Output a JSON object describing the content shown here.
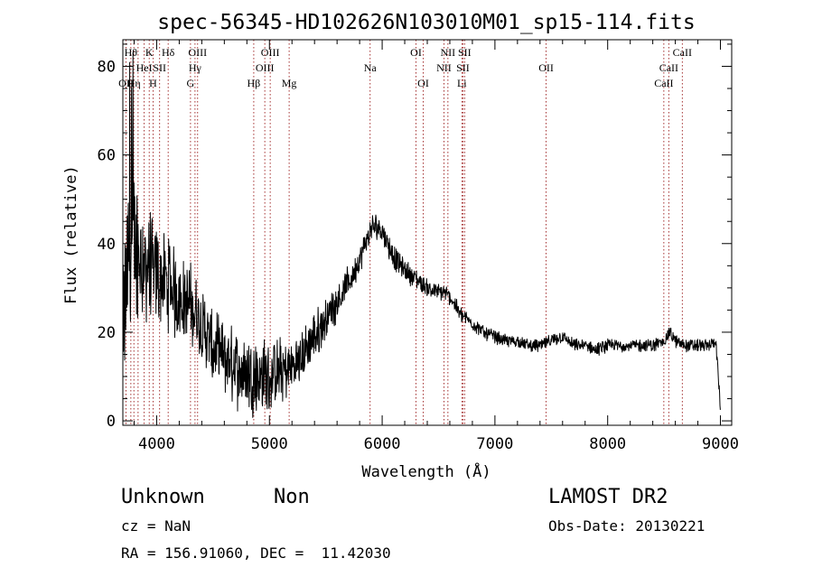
{
  "chart_data": {
    "type": "line",
    "title": "spec-56345-HD102626N103010M01_sp15-114.fits",
    "xlabel": "Wavelength (Å)",
    "ylabel": "Flux (relative)",
    "xlim": [
      3700,
      9100
    ],
    "ylim": [
      -1,
      86
    ],
    "xticks": [
      4000,
      5000,
      6000,
      7000,
      8000,
      9000
    ],
    "yticks": [
      0,
      20,
      40,
      60,
      80
    ],
    "grid": false,
    "series": [
      {
        "color": "#000000",
        "spectrum_envelope": {
          "x": [
            3700,
            3750,
            3800,
            3850,
            3900,
            3950,
            4000,
            4100,
            4200,
            4300,
            4400,
            4500,
            4600,
            4700,
            4800,
            4900,
            5000,
            5100,
            5200,
            5300,
            5400,
            5500,
            5600,
            5700,
            5800,
            5850,
            5900,
            5950,
            6000,
            6050,
            6100,
            6200,
            6300,
            6400,
            6500,
            6550,
            6600,
            6650,
            6700,
            6800,
            6900,
            7000,
            7100,
            7200,
            7300,
            7400,
            7500,
            7600,
            7700,
            7800,
            7900,
            8000,
            8100,
            8200,
            8300,
            8400,
            8500,
            8550,
            8600,
            8700,
            8800,
            8900,
            8960,
            9000
          ],
          "y": [
            18,
            38,
            40,
            38,
            36,
            34,
            33,
            31,
            28,
            26,
            22,
            16,
            14,
            12,
            11,
            10,
            10,
            11,
            12,
            15,
            19,
            23,
            27,
            31,
            36,
            40,
            43,
            44,
            43,
            40,
            37,
            34,
            32,
            30,
            29,
            29,
            28,
            26,
            24,
            22,
            20,
            19,
            18,
            18,
            17,
            17,
            18,
            19,
            17,
            17,
            16,
            17,
            17,
            17,
            17,
            17,
            18,
            20,
            18,
            17,
            17,
            17,
            18,
            3
          ]
        },
        "noise_amplitude": {
          "x": [
            3700,
            3800,
            3900,
            4000,
            4200,
            4400,
            4600,
            4800,
            5000,
            5200,
            5500,
            5800,
            6000,
            6500,
            7000,
            8000,
            9000
          ],
          "y": [
            14,
            14,
            11,
            9,
            8,
            7,
            7,
            7,
            7,
            5,
            4,
            2.5,
            2.5,
            1.5,
            1.2,
            1.2,
            1.2
          ]
        }
      }
    ],
    "line_marker_color": "#9b1c1c",
    "line_markers": [
      {
        "wavelength": 3728,
        "label": "OII",
        "row": 3
      },
      {
        "wavelength": 3771,
        "label": "Hθ",
        "row": 1
      },
      {
        "wavelength": 3798,
        "label": "Hη",
        "row": 3
      },
      {
        "wavelength": 3835,
        "label": "",
        "row": 0
      },
      {
        "wavelength": 3889,
        "label": "HeI",
        "row": 2
      },
      {
        "wavelength": 3934,
        "label": "K",
        "row": 1
      },
      {
        "wavelength": 3968,
        "label": "H",
        "row": 3
      },
      {
        "wavelength": 4026,
        "label": "SII",
        "row": 2
      },
      {
        "wavelength": 4102,
        "label": "Hδ",
        "row": 1
      },
      {
        "wavelength": 4300,
        "label": "G",
        "row": 3
      },
      {
        "wavelength": 4340,
        "label": "Hγ",
        "row": 2
      },
      {
        "wavelength": 4363,
        "label": "OIII",
        "row": 1
      },
      {
        "wavelength": 4861,
        "label": "Hβ",
        "row": 3
      },
      {
        "wavelength": 4959,
        "label": "OIII",
        "row": 2
      },
      {
        "wavelength": 5007,
        "label": "OIII",
        "row": 1
      },
      {
        "wavelength": 5175,
        "label": "Mg",
        "row": 3
      },
      {
        "wavelength": 5893,
        "label": "Na",
        "row": 2
      },
      {
        "wavelength": 6300,
        "label": "OI",
        "row": 1
      },
      {
        "wavelength": 6364,
        "label": "OI",
        "row": 3
      },
      {
        "wavelength": 6548,
        "label": "NII",
        "row": 2
      },
      {
        "wavelength": 6583,
        "label": "NII",
        "row": 1
      },
      {
        "wavelength": 6707,
        "label": "Li",
        "row": 3
      },
      {
        "wavelength": 6716,
        "label": "SII",
        "row": 2
      },
      {
        "wavelength": 6731,
        "label": "SII",
        "row": 1
      },
      {
        "wavelength": 7454,
        "label": "OII",
        "row": 2
      },
      {
        "wavelength": 8498,
        "label": "CaII",
        "row": 3
      },
      {
        "wavelength": 8542,
        "label": "CaII",
        "row": 2
      },
      {
        "wavelength": 8662,
        "label": "CaII",
        "row": 1
      }
    ]
  },
  "info": {
    "class": "Unknown",
    "subclass": "Non",
    "survey": "LAMOST DR2",
    "cz": "cz = NaN",
    "obs_date": "Obs-Date: 20130221",
    "coords": "RA = 156.91060, DEC =  11.42030"
  }
}
